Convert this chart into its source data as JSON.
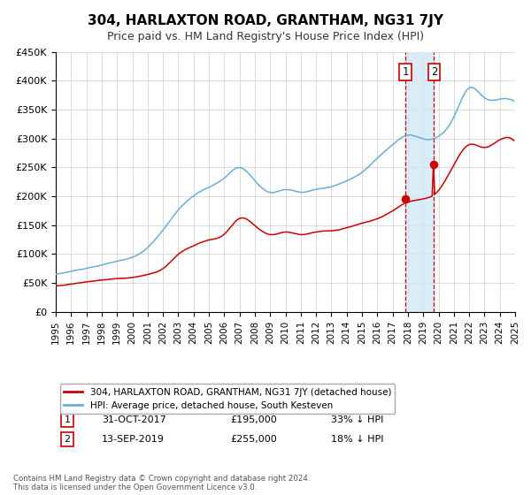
{
  "title": "304, HARLAXTON ROAD, GRANTHAM, NG31 7JY",
  "subtitle": "Price paid vs. HM Land Registry's House Price Index (HPI)",
  "ylim": [
    0,
    450000
  ],
  "yticks": [
    0,
    50000,
    100000,
    150000,
    200000,
    250000,
    300000,
    350000,
    400000,
    450000
  ],
  "ytick_labels": [
    "£0",
    "£50K",
    "£100K",
    "£150K",
    "£200K",
    "£250K",
    "£300K",
    "£350K",
    "£400K",
    "£450K"
  ],
  "legend_entry1": "304, HARLAXTON ROAD, GRANTHAM, NG31 7JY (detached house)",
  "legend_entry2": "HPI: Average price, detached house, South Kesteven",
  "sale1_date": "31-OCT-2017",
  "sale1_price": 195000,
  "sale1_pct": "33%",
  "sale2_date": "13-SEP-2019",
  "sale2_price": 255000,
  "sale2_pct": "18%",
  "footer1": "Contains HM Land Registry data © Crown copyright and database right 2024.",
  "footer2": "This data is licensed under the Open Government Licence v3.0.",
  "hpi_color": "#6aaed6",
  "price_color": "#cc0000",
  "shade_color": "#d0e8f5",
  "vline_color": "#cc0000",
  "background_color": "#ffffff",
  "grid_color": "#cccccc",
  "hpi_years_key": [
    1995.0,
    1996.0,
    1997.0,
    1998.0,
    1999.0,
    2000.0,
    2001.0,
    2002.0,
    2003.0,
    2004.0,
    2005.0,
    2006.0,
    2007.0,
    2008.0,
    2009.0,
    2010.0,
    2011.0,
    2012.0,
    2013.0,
    2014.0,
    2015.0,
    2016.0,
    2017.0,
    2018.0,
    2019.0,
    2020.0,
    2021.0,
    2022.0,
    2023.0,
    2024.0,
    2024.99
  ],
  "hpi_vals_key": [
    65000,
    70000,
    75000,
    80000,
    87000,
    93000,
    110000,
    140000,
    175000,
    200000,
    215000,
    230000,
    248000,
    225000,
    205000,
    210000,
    205000,
    210000,
    215000,
    225000,
    240000,
    265000,
    288000,
    305000,
    298000,
    302000,
    335000,
    385000,
    368000,
    365000,
    360000
  ],
  "price_years_key": [
    1995.0,
    1996.0,
    1997.0,
    1998.0,
    1999.0,
    2000.0,
    2001.0,
    2002.0,
    2003.0,
    2004.0,
    2005.0,
    2006.0,
    2007.0,
    2008.0,
    2009.0,
    2010.0,
    2011.0,
    2012.0,
    2013.0,
    2014.0,
    2015.0,
    2016.0,
    2017.0,
    2018.0,
    2019.0,
    2020.0,
    2021.0,
    2022.0,
    2023.0,
    2024.0,
    2024.99
  ],
  "price_vals_key": [
    45000,
    48000,
    52000,
    55000,
    58000,
    60000,
    65000,
    75000,
    100000,
    115000,
    125000,
    135000,
    162000,
    150000,
    135000,
    140000,
    135000,
    140000,
    142000,
    147000,
    155000,
    162000,
    175000,
    190000,
    195000,
    210000,
    255000,
    290000,
    285000,
    298000,
    295000
  ],
  "sale1_year": 2017.833,
  "sale2_year": 2019.708,
  "xlim": [
    1995,
    2025
  ],
  "xticks": [
    1995,
    1996,
    1997,
    1998,
    1999,
    2000,
    2001,
    2002,
    2003,
    2004,
    2005,
    2006,
    2007,
    2008,
    2009,
    2010,
    2011,
    2012,
    2013,
    2014,
    2015,
    2016,
    2017,
    2018,
    2019,
    2020,
    2021,
    2022,
    2023,
    2024,
    2025
  ]
}
